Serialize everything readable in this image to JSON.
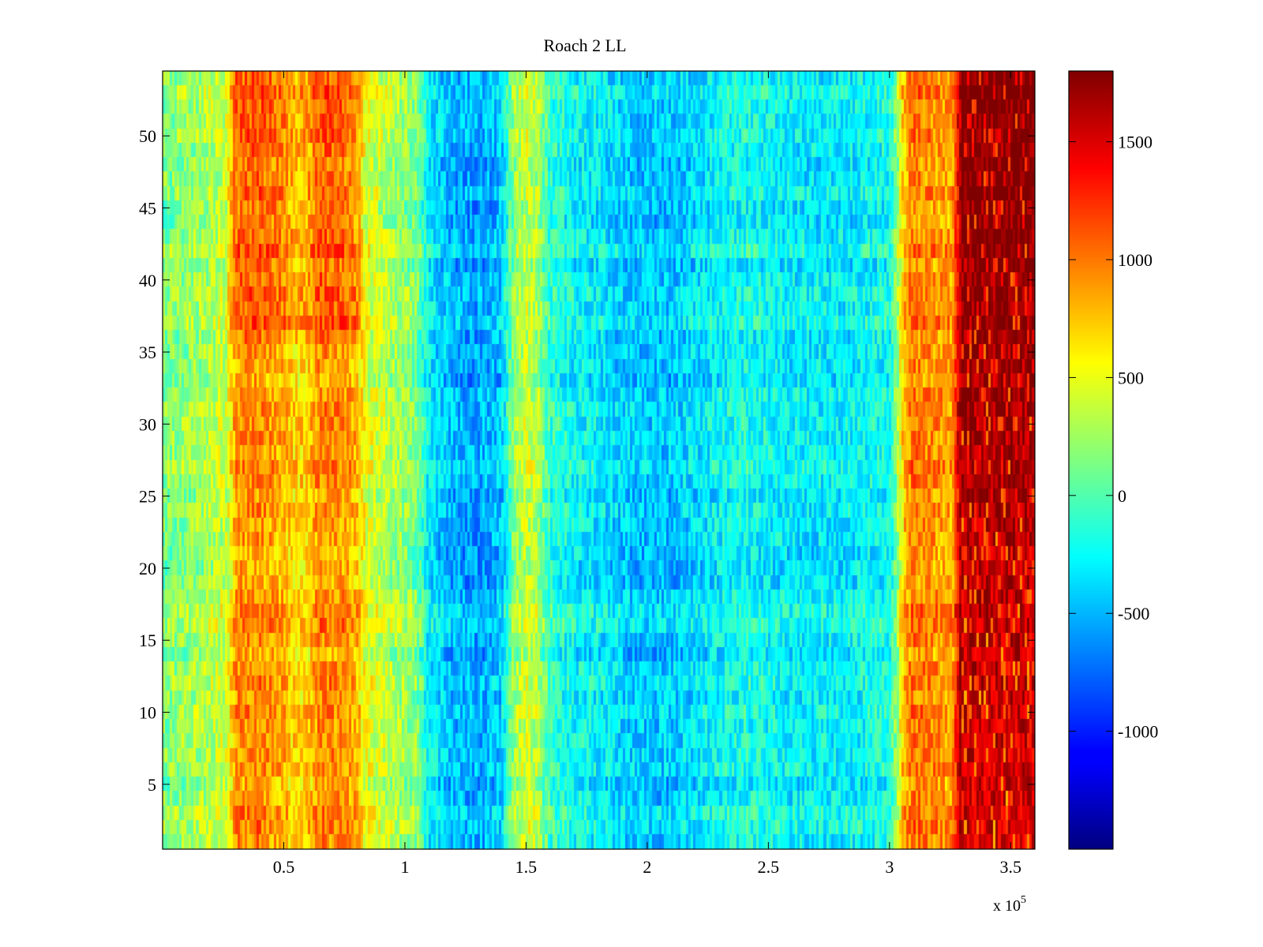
{
  "chart_data": {
    "type": "heatmap",
    "title": "Roach 2 LL",
    "xlabel": "",
    "ylabel": "",
    "x_exponent_label": "x 10",
    "x_exponent_power": "5",
    "xlim": [
      0,
      3.6
    ],
    "ylim": [
      0.5,
      54.5
    ],
    "x_ticks": [
      0.5,
      1,
      1.5,
      2,
      2.5,
      3,
      3.5
    ],
    "x_tick_labels": [
      "0.5",
      "1",
      "1.5",
      "2",
      "2.5",
      "3",
      "3.5"
    ],
    "y_ticks": [
      5,
      10,
      15,
      20,
      25,
      30,
      35,
      40,
      45,
      50
    ],
    "y_tick_labels": [
      "5",
      "10",
      "15",
      "20",
      "25",
      "30",
      "35",
      "40",
      "45",
      "50"
    ],
    "colorbar": {
      "colormap": "jet",
      "range": [
        -1500,
        1800
      ],
      "ticks": [
        -1000,
        -500,
        0,
        500,
        1000,
        1500
      ],
      "tick_labels": [
        "-1000",
        "-500",
        "0",
        "500",
        "1000",
        "1500"
      ]
    },
    "rows": 54,
    "x_bins": 360,
    "column_profile": {
      "x": [
        0,
        0.15,
        0.27,
        0.3,
        0.4,
        0.5,
        0.55,
        0.6,
        0.65,
        0.75,
        0.8,
        0.85,
        0.95,
        1.05,
        1.1,
        1.2,
        1.3,
        1.4,
        1.45,
        1.5,
        1.55,
        1.6,
        1.7,
        1.8,
        1.9,
        2.0,
        2.1,
        2.2,
        2.3,
        2.4,
        2.5,
        2.6,
        2.7,
        2.8,
        2.9,
        3.0,
        3.02,
        3.06,
        3.1,
        3.2,
        3.26,
        3.3,
        3.4,
        3.5,
        3.6
      ],
      "value": [
        150,
        250,
        400,
        900,
        950,
        800,
        650,
        700,
        950,
        900,
        800,
        450,
        300,
        150,
        -300,
        -500,
        -550,
        -450,
        200,
        400,
        300,
        -100,
        -250,
        -300,
        -400,
        -450,
        -450,
        -350,
        -250,
        -200,
        -250,
        -300,
        -300,
        -300,
        -250,
        -200,
        0,
        800,
        1000,
        900,
        850,
        1750,
        1800,
        1800,
        1800
      ]
    },
    "row_trend": {
      "right_region_x_min": 3.3,
      "right_region_top_value": 1850,
      "right_region_bottom_value": 1500,
      "left_orange_top_boost": 150
    },
    "noise_amplitude": 260,
    "seed": 20240611
  }
}
